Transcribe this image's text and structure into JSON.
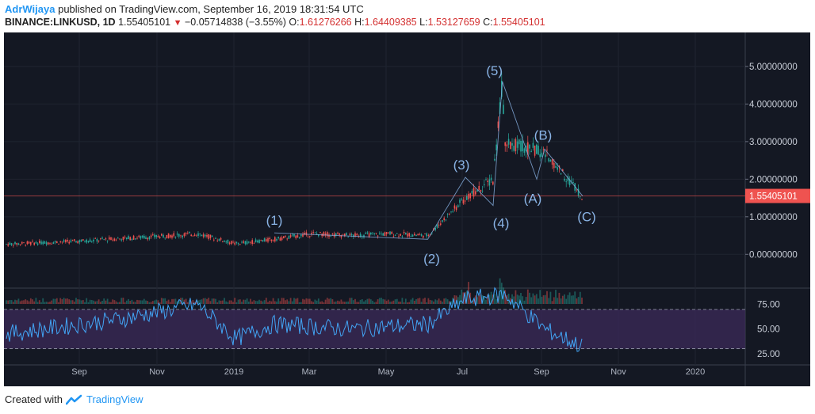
{
  "header": {
    "author": "AdrWijaya",
    "published": "published on TradingView.com, September 16, 2019 18:31:54 UTC",
    "symbol": "BINANCE:LINKUSD, 1D",
    "last": "1.55405101",
    "change": "−0.05714838 (−3.55%)",
    "o_label": "O:",
    "o": "1.61276266",
    "h_label": "H:",
    "h": "1.64409385",
    "l_label": "L:",
    "l": "1.53127659",
    "c_label": "C:",
    "c": "1.55405101"
  },
  "footer": {
    "created": "Created with",
    "brand": "TradingView"
  },
  "colors": {
    "up": "#26a69a",
    "down": "#ef5350",
    "wave": "#8ab4e6",
    "rsi": "#42a5f5",
    "rsi_band": "#3b2a5a",
    "bg": "#141823",
    "price_tag": "#ef5350"
  },
  "chart_data": {
    "type": "line",
    "price_axis": {
      "ticks": [
        0,
        1,
        2,
        3,
        4,
        5
      ],
      "tick_labels": [
        "0.00000000",
        "1.00000000",
        "2.00000000",
        "3.00000000",
        "4.00000000",
        "5.00000000"
      ],
      "ylim": [
        -0.9,
        5.8
      ]
    },
    "rsi_axis": {
      "ticks": [
        25,
        50,
        75
      ],
      "tick_labels": [
        "25.00",
        "50.00",
        "75.00"
      ],
      "bands": [
        30,
        70
      ]
    },
    "x_axis": {
      "labels": [
        "Sep",
        "Nov",
        "2019",
        "Mar",
        "May",
        "Jul",
        "Sep",
        "Nov",
        "2020"
      ]
    },
    "last_price": 1.55405101,
    "last_price_label": "1.55405101",
    "price_series": [
      {
        "x": "Jul 2018",
        "y": 0.27
      },
      {
        "x": "Aug 2018",
        "y": 0.35
      },
      {
        "x": "Sep 2018",
        "y": 0.42
      },
      {
        "x": "Oct 2018",
        "y": 0.48
      },
      {
        "x": "Nov 2018",
        "y": 0.55
      },
      {
        "x": "Dec 2018",
        "y": 0.28
      },
      {
        "x": "Jan 2019",
        "y": 0.4
      },
      {
        "x": "Feb 2019",
        "y": 0.55
      },
      {
        "x": "Mar 2019",
        "y": 0.5
      },
      {
        "x": "Apr 2019",
        "y": 0.55
      },
      {
        "x": "May 2019",
        "y": 0.5
      },
      {
        "x": "Jun 2019",
        "y": 1.5
      },
      {
        "x": "Late Jun 2019",
        "y": 2.0
      },
      {
        "x": "Jun 29 2019",
        "y": 4.6
      },
      {
        "x": "Jul 2019",
        "y": 3.0
      },
      {
        "x": "Aug 2019",
        "y": 2.7
      },
      {
        "x": "Sep 2019",
        "y": 1.55
      }
    ],
    "rsi_series": [
      {
        "x": "Jul 2018",
        "y": 45
      },
      {
        "x": "Sep 2018",
        "y": 60
      },
      {
        "x": "Nov 2018",
        "y": 75
      },
      {
        "x": "Dec 2018",
        "y": 40
      },
      {
        "x": "Jan 2019",
        "y": 55
      },
      {
        "x": "Mar 2019",
        "y": 50
      },
      {
        "x": "May 2019",
        "y": 55
      },
      {
        "x": "Jun 2019",
        "y": 80
      },
      {
        "x": "Jul 2019",
        "y": 85
      },
      {
        "x": "Aug 2019",
        "y": 50
      },
      {
        "x": "Sep 2019",
        "y": 32
      }
    ],
    "wave_labels": [
      {
        "text": "(1)",
        "x": "Jan 2019",
        "y": 0.57
      },
      {
        "text": "(2)",
        "x": "May 2019",
        "y": 0.4
      },
      {
        "text": "(3)",
        "x": "Jun 2019",
        "y": 2.05
      },
      {
        "text": "(4)",
        "x": "Late Jun 2019",
        "y": 1.3
      },
      {
        "text": "(5)",
        "x": "Jun 29 2019",
        "y": 4.6
      },
      {
        "text": "(A)",
        "x": "Aug 2019",
        "y": 2.0
      },
      {
        "text": "(B)",
        "x": "Aug 2019",
        "y": 2.8
      },
      {
        "text": "(C)",
        "x": "Sep 2019",
        "y": 1.55
      }
    ]
  }
}
